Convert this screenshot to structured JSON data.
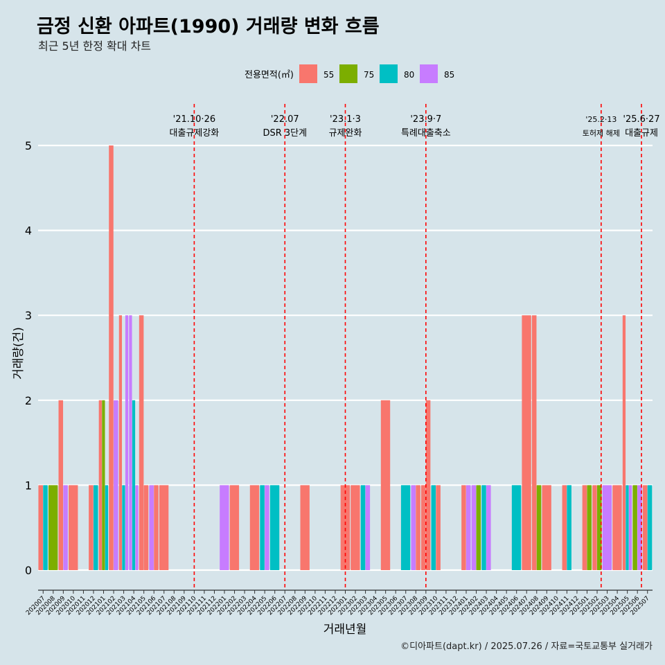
{
  "title": "금정 신환 아파트(1990) 거래량 변화 흐름",
  "subtitle": "최근 5년 한정 확대 차트",
  "caption": "©디아파트(dapt.kr) / 2025.07.26 / 자료=국토교통부 실거래가",
  "colors": {
    "55": "#f8766d",
    "75": "#7cae00",
    "80": "#00bfc4",
    "85": "#c77cff"
  },
  "chart_data": {
    "type": "bar",
    "xlabel": "거래년월",
    "ylabel": "거래량(건)",
    "ylim": [
      0,
      5
    ],
    "yticks": [
      0,
      1,
      2,
      3,
      4,
      5
    ],
    "legend": {
      "title": "전용면적(㎡)",
      "entries": [
        "55",
        "75",
        "80",
        "85"
      ],
      "position": "top"
    },
    "categories": [
      "202007",
      "202008",
      "202009",
      "202010",
      "202011",
      "202012",
      "202101",
      "202102",
      "202103",
      "202104",
      "202105",
      "202106",
      "202107",
      "202108",
      "202109",
      "202110",
      "202111",
      "202112",
      "202201",
      "202202",
      "202203",
      "202204",
      "202205",
      "202206",
      "202207",
      "202208",
      "202209",
      "202210",
      "202211",
      "202212",
      "202301",
      "202302",
      "202303",
      "202304",
      "202305",
      "202306",
      "202307",
      "202308",
      "202309",
      "202310",
      "202311",
      "202312",
      "202401",
      "202402",
      "202403",
      "202404",
      "202405",
      "202406",
      "202407",
      "202408",
      "202409",
      "202410",
      "202411",
      "202412",
      "202501",
      "202502",
      "202503",
      "202504",
      "202505",
      "202506",
      "202507"
    ],
    "bars": [
      [
        "202007",
        [
          [
            "55",
            1
          ],
          [
            "80",
            1
          ]
        ]
      ],
      [
        "202008",
        [
          [
            "75",
            1
          ]
        ]
      ],
      [
        "202009",
        [
          [
            "55",
            2
          ],
          [
            "85",
            1
          ]
        ]
      ],
      [
        "202010",
        [
          [
            "55",
            1
          ]
        ]
      ],
      [
        "202012",
        [
          [
            "55",
            1
          ],
          [
            "80",
            1
          ]
        ]
      ],
      [
        "202101",
        [
          [
            "55",
            2
          ],
          [
            "75",
            2
          ],
          [
            "80",
            1
          ]
        ]
      ],
      [
        "202102",
        [
          [
            "55",
            5
          ],
          [
            "85",
            2
          ]
        ]
      ],
      [
        "202103",
        [
          [
            "55",
            3
          ],
          [
            "80",
            1
          ],
          [
            "85",
            3
          ]
        ]
      ],
      [
        "202104",
        [
          [
            "85",
            3
          ],
          [
            "80",
            2
          ],
          [
            "85",
            1
          ]
        ]
      ],
      [
        "202105",
        [
          [
            "55",
            3
          ],
          [
            "55",
            1
          ]
        ]
      ],
      [
        "202106",
        [
          [
            "85",
            1
          ],
          [
            "55",
            1
          ]
        ]
      ],
      [
        "202107",
        [
          [
            "55",
            1
          ]
        ]
      ],
      [
        "202201",
        [
          [
            "85",
            1
          ]
        ]
      ],
      [
        "202202",
        [
          [
            "55",
            1
          ]
        ]
      ],
      [
        "202204",
        [
          [
            "55",
            1
          ]
        ]
      ],
      [
        "202205",
        [
          [
            "80",
            1
          ],
          [
            "85",
            1
          ]
        ]
      ],
      [
        "202206",
        [
          [
            "80",
            1
          ]
        ]
      ],
      [
        "202209",
        [
          [
            "55",
            1
          ]
        ]
      ],
      [
        "202301",
        [
          [
            "55",
            1
          ]
        ]
      ],
      [
        "202302",
        [
          [
            "55",
            1
          ]
        ]
      ],
      [
        "202303",
        [
          [
            "80",
            1
          ],
          [
            "85",
            1
          ]
        ]
      ],
      [
        "202305",
        [
          [
            "55",
            2
          ]
        ]
      ],
      [
        "202307",
        [
          [
            "80",
            1
          ]
        ]
      ],
      [
        "202308",
        [
          [
            "85",
            1
          ],
          [
            "55",
            1
          ]
        ]
      ],
      [
        "202309",
        [
          [
            "55",
            1
          ],
          [
            "55",
            2
          ]
        ]
      ],
      [
        "202310",
        [
          [
            "80",
            1
          ],
          [
            "55",
            1
          ]
        ]
      ],
      [
        "202401",
        [
          [
            "55",
            1
          ],
          [
            "85",
            1
          ]
        ]
      ],
      [
        "202402",
        [
          [
            "85",
            1
          ],
          [
            "75",
            1
          ]
        ]
      ],
      [
        "202403",
        [
          [
            "80",
            1
          ],
          [
            "85",
            1
          ]
        ]
      ],
      [
        "202406",
        [
          [
            "80",
            1
          ]
        ]
      ],
      [
        "202407",
        [
          [
            "55",
            3
          ]
        ]
      ],
      [
        "202408",
        [
          [
            "55",
            3
          ],
          [
            "75",
            1
          ]
        ]
      ],
      [
        "202409",
        [
          [
            "55",
            1
          ]
        ]
      ],
      [
        "202411",
        [
          [
            "55",
            1
          ],
          [
            "80",
            1
          ]
        ]
      ],
      [
        "202501",
        [
          [
            "55",
            1
          ],
          [
            "75",
            1
          ]
        ]
      ],
      [
        "202502",
        [
          [
            "55",
            1
          ],
          [
            "75",
            1
          ]
        ]
      ],
      [
        "202503",
        [
          [
            "85",
            1
          ]
        ]
      ],
      [
        "202504",
        [
          [
            "55",
            1
          ]
        ]
      ],
      [
        "202505",
        [
          [
            "55",
            3
          ],
          [
            "80",
            1
          ],
          [
            "85",
            1
          ]
        ]
      ],
      [
        "202506",
        [
          [
            "75",
            1
          ],
          [
            "85",
            1
          ]
        ]
      ],
      [
        "202507",
        [
          [
            "55",
            1
          ],
          [
            "80",
            1
          ]
        ]
      ]
    ],
    "events": [
      {
        "x": 15.0,
        "date": "'21.10·26",
        "label": "대출규제강화"
      },
      {
        "x": 24.0,
        "date": "'22.07",
        "label": "DSR 3단계"
      },
      {
        "x": 30.0,
        "date": "'23.1·3",
        "label": "규제완화"
      },
      {
        "x": 38.0,
        "date": "'23.9·7",
        "label": "특례대출축소"
      },
      {
        "x": 55.4,
        "date": "'25.2·13",
        "label": "토허제 해제"
      },
      {
        "x": 59.4,
        "date": "'25.6·27",
        "label": "대출규제"
      }
    ]
  }
}
